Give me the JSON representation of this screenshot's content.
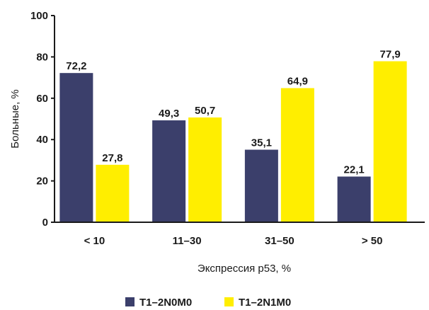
{
  "chart_data": {
    "type": "bar",
    "categories": [
      "< 10",
      "11–30",
      "31–50",
      "> 50"
    ],
    "series": [
      {
        "name": "T1–2N0M0",
        "values": [
          "72,2",
          "49,3",
          "35,1",
          "22,1"
        ],
        "numeric": [
          72.2,
          49.3,
          35.1,
          22.1
        ],
        "color": "#3b3f6b"
      },
      {
        "name": "T1–2N1M0",
        "values": [
          "27,8",
          "50,7",
          "64,9",
          "77,9"
        ],
        "numeric": [
          27.8,
          50.7,
          64.9,
          77.9
        ],
        "color": "#ffee00"
      }
    ],
    "title": "",
    "xlabel": "Экспрессия p53, %",
    "ylabel": "Больные, %",
    "ylim": [
      0,
      100
    ],
    "yticks": [
      "0",
      "20",
      "40",
      "60",
      "80",
      "100"
    ],
    "ytick_values": [
      0,
      20,
      40,
      60,
      80,
      100
    ],
    "grid": false,
    "legend_position": "bottom-center"
  }
}
